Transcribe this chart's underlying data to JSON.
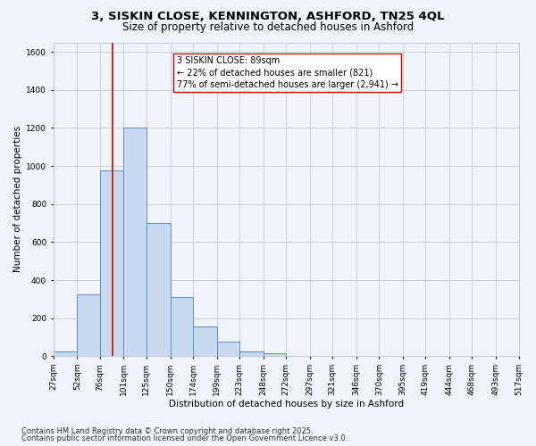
{
  "title_line1": "3, SISKIN CLOSE, KENNINGTON, ASHFORD, TN25 4QL",
  "title_line2": "Size of property relative to detached houses in Ashford",
  "xlabel": "Distribution of detached houses by size in Ashford",
  "ylabel": "Number of detached properties",
  "bin_labels": [
    "27sqm",
    "52sqm",
    "76sqm",
    "101sqm",
    "125sqm",
    "150sqm",
    "174sqm",
    "199sqm",
    "223sqm",
    "248sqm",
    "272sqm",
    "297sqm",
    "321sqm",
    "346sqm",
    "370sqm",
    "395sqm",
    "419sqm",
    "444sqm",
    "468sqm",
    "493sqm",
    "517sqm"
  ],
  "bin_edges": [
    27,
    52,
    76,
    101,
    125,
    150,
    174,
    199,
    223,
    248,
    272,
    297,
    321,
    346,
    370,
    395,
    419,
    444,
    468,
    493,
    517
  ],
  "bar_values": [
    25,
    325,
    975,
    1200,
    700,
    310,
    155,
    75,
    25,
    15,
    0,
    0,
    0,
    0,
    0,
    0,
    0,
    0,
    0,
    0
  ],
  "bar_facecolor": "#c8d8f0",
  "bar_edgecolor": "#5b8fc9",
  "vline_x": 89,
  "vline_color": "#cc0000",
  "annotation_line1": "3 SISKIN CLOSE: 89sqm",
  "annotation_line2": "← 22% of detached houses are smaller (821)",
  "annotation_line3": "77% of semi-detached houses are larger (2,941) →",
  "annotation_box_edgecolor": "#cc0000",
  "annotation_box_facecolor": "white",
  "ylim": [
    0,
    1650
  ],
  "yticks": [
    0,
    200,
    400,
    600,
    800,
    1000,
    1200,
    1400,
    1600
  ],
  "grid_color": "#c0c8d8",
  "background_color": "#f0f4fa",
  "footnote1": "Contains HM Land Registry data © Crown copyright and database right 2025.",
  "footnote2": "Contains public sector information licensed under the Open Government Licence v3.0.",
  "title_fontsize": 9.5,
  "subtitle_fontsize": 8.5,
  "axis_label_fontsize": 7.5,
  "tick_fontsize": 6.5,
  "annotation_fontsize": 7,
  "footnote_fontsize": 6
}
